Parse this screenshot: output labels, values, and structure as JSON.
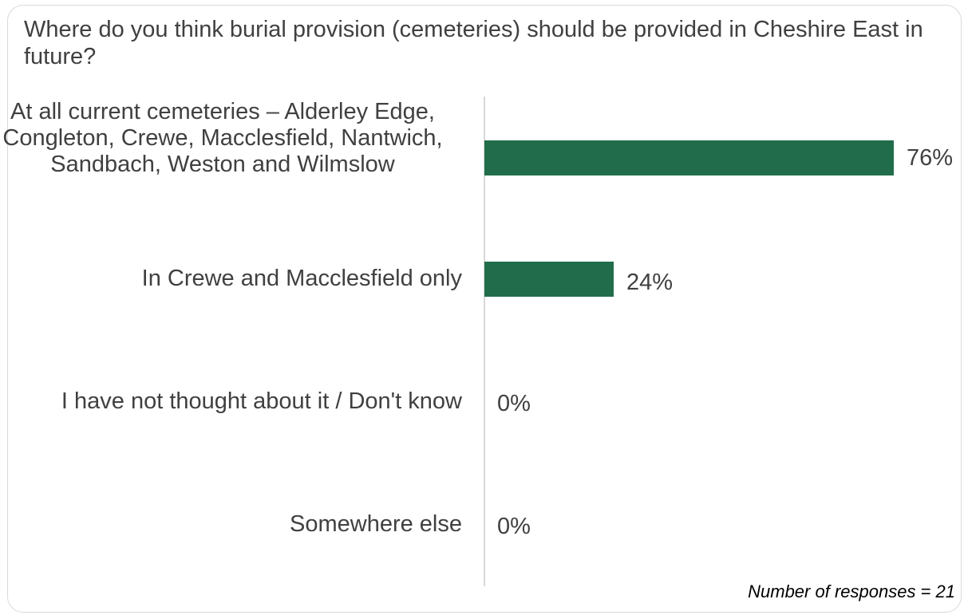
{
  "chart_data": {
    "type": "bar",
    "orientation": "horizontal",
    "title": "Where do you think burial provision (cemeteries) should be provided in Cheshire East in future?",
    "categories": [
      "At all current cemeteries – Alderley Edge, Congleton, Crewe, Macclesfield, Nantwich, Sandbach, Weston and Wilmslow",
      "In Crewe and Macclesfield only",
      "I have not thought about it / Don't know",
      "Somewhere else"
    ],
    "values": [
      76,
      24,
      0,
      0
    ],
    "value_labels": [
      "76%",
      "24%",
      "0%",
      "0%"
    ],
    "unit": "%",
    "xlim": [
      0,
      100
    ],
    "bar_color": "#216d4b",
    "grid": false,
    "legend": "none",
    "note": "Number of responses = 21"
  }
}
